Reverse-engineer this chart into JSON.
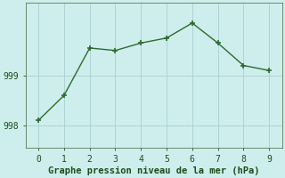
{
  "x": [
    0,
    1,
    2,
    3,
    4,
    5,
    6,
    7,
    8,
    9
  ],
  "y": [
    998.1,
    998.6,
    999.55,
    999.5,
    999.65,
    999.75,
    1000.05,
    999.65,
    999.2,
    999.1
  ],
  "line_color": "#2d6a2d",
  "marker": "+",
  "marker_size": 5,
  "marker_lw": 1.2,
  "line_width": 1.0,
  "background_color": "#ceeeed",
  "grid_color": "#aacfcf",
  "xlabel": "Graphe pression niveau de la mer (hPa)",
  "xlabel_color": "#1a4d1a",
  "xlabel_fontsize": 7.5,
  "ytick_labels": [
    "998",
    "999"
  ],
  "ytick_values": [
    998,
    999
  ],
  "ylim": [
    997.55,
    1000.45
  ],
  "xlim": [
    -0.5,
    9.5
  ],
  "xtick_values": [
    0,
    1,
    2,
    3,
    4,
    5,
    6,
    7,
    8,
    9
  ],
  "tick_color": "#1a4d1a",
  "tick_fontsize": 7
}
